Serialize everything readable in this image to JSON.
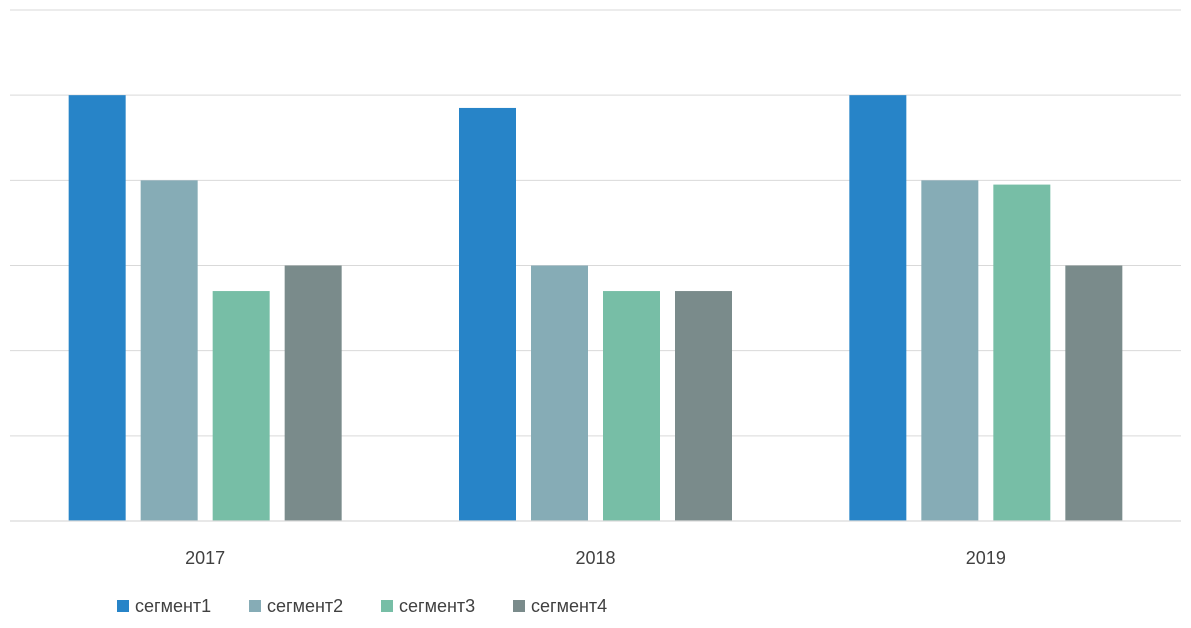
{
  "chart_data": {
    "type": "bar",
    "categories": [
      "2017",
      "2018",
      "2019"
    ],
    "series": [
      {
        "name": "сегмент1",
        "color": "#2784c8",
        "values": [
          5,
          4.85,
          5
        ]
      },
      {
        "name": "сегмент2",
        "color": "#86acb6",
        "values": [
          4,
          3,
          4
        ]
      },
      {
        "name": "сегмент3",
        "color": "#77bea6",
        "values": [
          2.7,
          2.7,
          3.95
        ]
      },
      {
        "name": "сегмент4",
        "color": "#7a8b8b",
        "values": [
          3,
          2.7,
          3
        ]
      }
    ],
    "ylim": [
      0,
      6
    ],
    "gridlines": true,
    "y_tick_labels_shown": false,
    "legend_position": "bottom",
    "title": "",
    "xlabel": "",
    "ylabel": ""
  }
}
